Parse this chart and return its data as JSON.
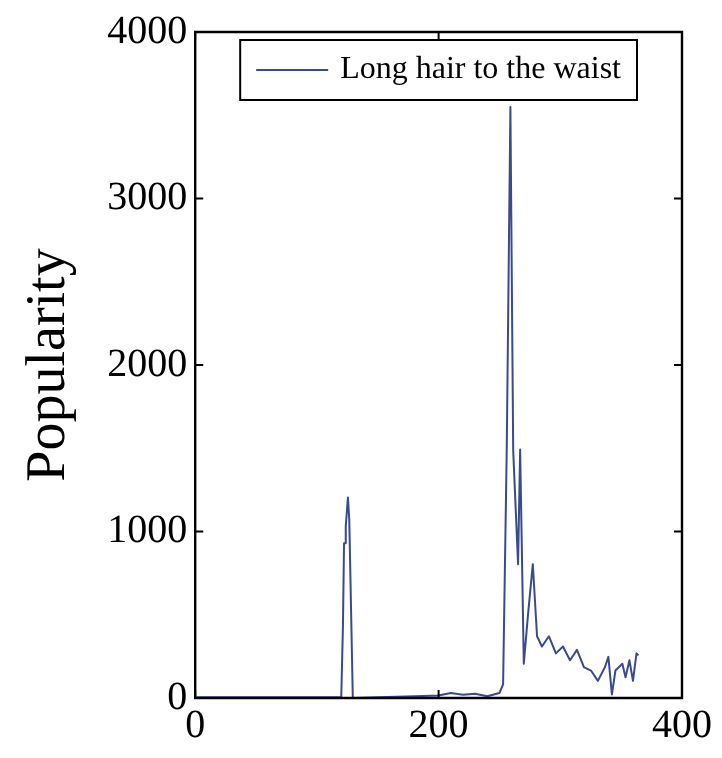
{
  "chart_data": {
    "type": "line",
    "ylabel": "Popularity",
    "legend": "top",
    "grid": false,
    "marker": "none",
    "line_style": "solid",
    "xlim": [
      0,
      400
    ],
    "xticks": [
      0,
      200,
      400
    ],
    "ylim": [
      0,
      4000
    ],
    "yticks": [
      0,
      1000,
      2000,
      3000,
      4000
    ],
    "series": [
      {
        "name": "Long hair to the waist",
        "color": "#3a4a8c",
        "x": [
          1,
          50,
          100,
          120,
          121.4,
          122.3,
          123.7,
          125.5,
          126.6,
          129.5,
          150,
          180,
          200,
          210,
          220,
          230,
          240,
          250,
          253,
          256,
          259,
          261.3,
          265.3,
          267,
          270,
          273.4,
          277.4,
          280.9,
          284.9,
          290.6,
          296.4,
          302.2,
          308,
          313.7,
          319.4,
          325.2,
          330.9,
          336.7,
          339.5,
          342.4,
          345.3,
          351,
          353.6,
          356.8,
          359.7,
          362.6,
          364.3
        ],
        "values": [
          5,
          5,
          5,
          5,
          432,
          930,
          1031,
          1204,
          1072,
          0,
          5,
          10,
          15,
          30,
          20,
          25,
          10,
          30,
          82,
          1500,
          3550,
          1485,
          804,
          1493,
          206,
          495,
          804,
          371,
          309,
          371,
          268,
          309,
          227,
          289,
          186,
          165,
          103,
          186,
          247,
          21,
          165,
          206,
          124,
          227,
          103,
          268,
          256
        ]
      }
    ]
  }
}
